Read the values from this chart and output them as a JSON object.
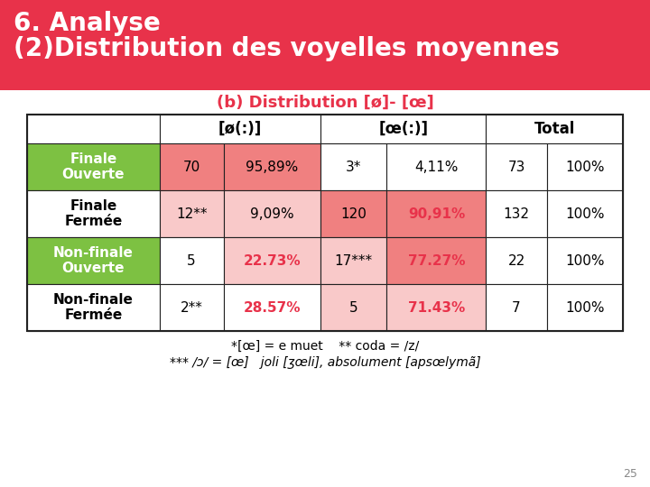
{
  "title_line1": "6. Analyse",
  "title_line2": "(2)Distribution des voyelles moyennes",
  "subtitle": "(b) Distribution [ø]- [œ]",
  "header_phi": "[ø(:)]",
  "header_oe": "[œ(:)]",
  "header_total": "Total",
  "rows": [
    {
      "label": "Finale\nOuverte",
      "phi_n": "70",
      "phi_pct": "95,89%",
      "oe_n": "3*",
      "oe_pct": "4,11%",
      "total_n": "73",
      "total_pct": "100%",
      "label_bg": "#7dc142",
      "phi_n_bg": "#f08080",
      "phi_pct_bg": "#f08080",
      "oe_n_bg": "#ffffff",
      "oe_pct_bg": "#ffffff",
      "total_n_bg": "#ffffff",
      "total_pct_bg": "#ffffff",
      "phi_pct_bold": false,
      "oe_pct_bold": false
    },
    {
      "label": "Finale\nFermée",
      "phi_n": "12**",
      "phi_pct": "9,09%",
      "oe_n": "120",
      "oe_pct": "90,91%",
      "total_n": "132",
      "total_pct": "100%",
      "label_bg": "#ffffff",
      "phi_n_bg": "#f9c9c9",
      "phi_pct_bg": "#f9c9c9",
      "oe_n_bg": "#f08080",
      "oe_pct_bg": "#f08080",
      "total_n_bg": "#ffffff",
      "total_pct_bg": "#ffffff",
      "phi_pct_bold": false,
      "oe_pct_bold": true
    },
    {
      "label": "Non-finale\nOuverte",
      "phi_n": "5",
      "phi_pct": "22.73%",
      "oe_n": "17***",
      "oe_pct": "77.27%",
      "total_n": "22",
      "total_pct": "100%",
      "label_bg": "#7dc142",
      "phi_n_bg": "#ffffff",
      "phi_pct_bg": "#f9c9c9",
      "oe_n_bg": "#f9c9c9",
      "oe_pct_bg": "#f08080",
      "total_n_bg": "#ffffff",
      "total_pct_bg": "#ffffff",
      "phi_pct_bold": true,
      "oe_pct_bold": true
    },
    {
      "label": "Non-finale\nFermée",
      "phi_n": "2**",
      "phi_pct": "28.57%",
      "oe_n": "5",
      "oe_pct": "71.43%",
      "total_n": "7",
      "total_pct": "100%",
      "label_bg": "#ffffff",
      "phi_n_bg": "#ffffff",
      "phi_pct_bg": "#ffffff",
      "oe_n_bg": "#f9c9c9",
      "oe_pct_bg": "#f9c9c9",
      "total_n_bg": "#ffffff",
      "total_pct_bg": "#ffffff",
      "phi_pct_bold": true,
      "oe_pct_bold": true
    }
  ],
  "footnote1": "*[œ] = e muet    ** coda = /z/",
  "footnote2": "*** /ɔ/ = [œ]   joli [ʒœli], absolument [apsœlymã]",
  "page_num": "25",
  "header_bg": "#e8324a",
  "title_color": "#ffffff",
  "subtitle_color": "#e8324a",
  "border_color": "#222222"
}
